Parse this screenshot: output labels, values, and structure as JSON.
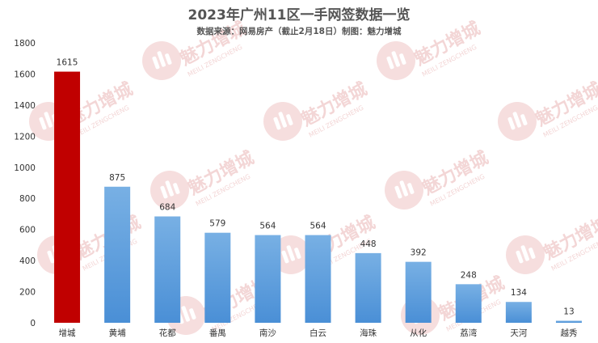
{
  "chart_data": {
    "type": "bar",
    "title": "2023年广州11区一手网签数据一览",
    "subtitle": "数据来源：网易房产（截止2月18日）制图：魅力增城",
    "xlabel": "",
    "ylabel": "",
    "ylim": [
      0,
      1800
    ],
    "yticks": [
      0,
      200,
      400,
      600,
      800,
      1000,
      1200,
      1400,
      1600,
      1800
    ],
    "grid": false,
    "legend": "none",
    "categories": [
      "增城",
      "黄埔",
      "花都",
      "番禺",
      "南沙",
      "白云",
      "海珠",
      "从化",
      "荔湾",
      "天河",
      "越秀"
    ],
    "values": [
      1615,
      875,
      684,
      579,
      564,
      564,
      448,
      392,
      248,
      134,
      13
    ],
    "colors": {
      "highlight": "#c00000",
      "bar_top": "#78b0e4",
      "bar_bottom": "#4a8fd6",
      "watermark": "#f6dede"
    }
  },
  "watermark": {
    "text": "魅力增城",
    "sub": "MEILI ZENGCHENG"
  }
}
